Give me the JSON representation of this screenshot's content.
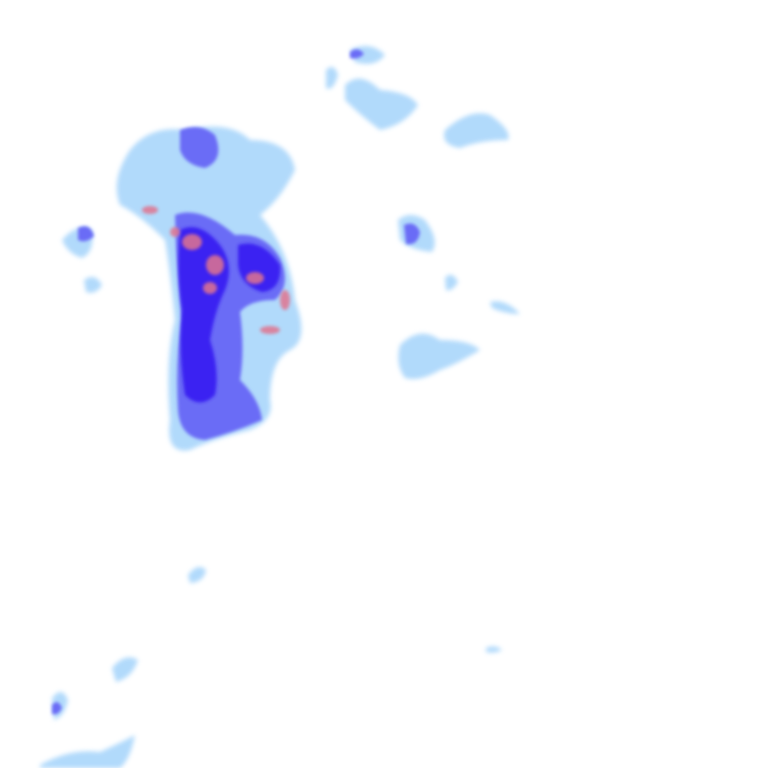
{
  "map": {
    "colors": {
      "background": "#ffffff",
      "light_precip": "#a9d6fb",
      "moderate_precip": "#6a6cf6",
      "heavy_precip": "#3b24f2",
      "intense_precip": "#e0748f"
    }
  }
}
